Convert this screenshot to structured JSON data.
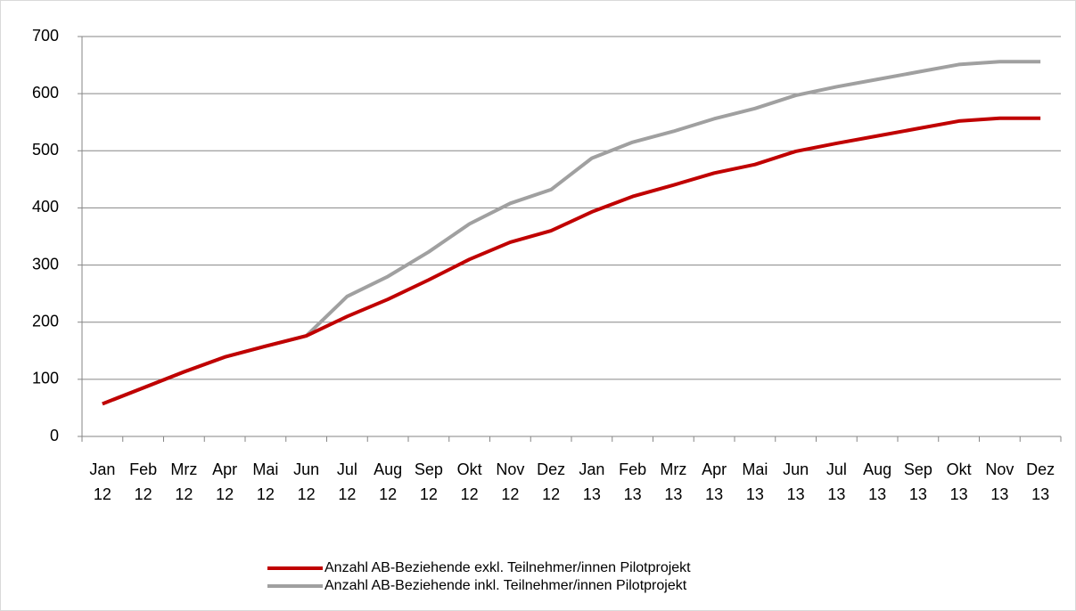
{
  "chart_data": {
    "type": "line",
    "categories": [
      "Jan 12",
      "Feb 12",
      "Mrz 12",
      "Apr 12",
      "Mai 12",
      "Jun 12",
      "Jul 12",
      "Aug 12",
      "Sep 12",
      "Okt 12",
      "Nov 12",
      "Dez 12",
      "Jan 13",
      "Feb 13",
      "Mrz 13",
      "Apr 13",
      "Mai 13",
      "Jun 13",
      "Jul 13",
      "Aug 13",
      "Sep 13",
      "Okt 13",
      "Nov 13",
      "Dez 13"
    ],
    "series": [
      {
        "name": "Anzahl AB-Beziehende exkl. Teilnehmer/innen Pilotprojekt",
        "color": "#c00000",
        "values": [
          57,
          85,
          113,
          139,
          158,
          176,
          210,
          240,
          274,
          310,
          340,
          360,
          393,
          420,
          440,
          461,
          476,
          499,
          513,
          526,
          539,
          552,
          557,
          557
        ]
      },
      {
        "name": "Anzahl AB-Beziehende inkl. Teilnehmer/innen Pilotprojekt",
        "color": "#a0a0a0",
        "values": [
          57,
          85,
          113,
          139,
          158,
          176,
          245,
          280,
          323,
          372,
          408,
          432,
          487,
          515,
          534,
          556,
          574,
          597,
          612,
          625,
          638,
          651,
          656,
          656
        ]
      }
    ],
    "ylim": [
      0,
      700
    ],
    "yticks": [
      0,
      100,
      200,
      300,
      400,
      500,
      600,
      700
    ],
    "grid": true
  }
}
